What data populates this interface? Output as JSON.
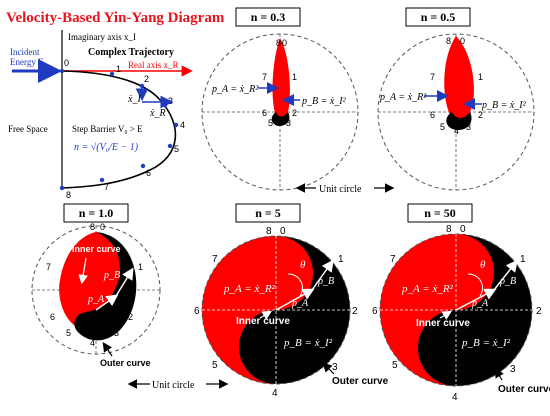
{
  "title": "Velocity-Based Yin-Yang Diagram",
  "trajectory_panel": {
    "imag_axis_label": "Imaginary axis x_I",
    "real_axis_label": "Real axis x_R",
    "complex_trajectory_label": "Complex Trajectory",
    "incident_label_1": "Incident",
    "incident_label_2": "Energy E",
    "free_space_label": "Free Space",
    "step_barrier_label": "Step Barrier V₀ > E",
    "n_formula": "n = √(V₀/E − 1)",
    "xi_dot_label": "ẋ_I",
    "xr_dot_label": "ẋ_R",
    "point_labels": [
      "0",
      "1",
      "2",
      "3",
      "4",
      "5",
      "6",
      "7",
      "8"
    ]
  },
  "panels": [
    {
      "id": "n03",
      "label": "n = 0.3",
      "pa": "p_A = ẋ_R²",
      "pb": "p_B = ẋ_I²",
      "numbers": [
        "8",
        "0",
        "7",
        "1",
        "6",
        "2",
        "5",
        "4",
        "3"
      ]
    },
    {
      "id": "n05",
      "label": "n = 0.5",
      "pa": "p_A = ẋ_R²",
      "pb": "p_B = ẋ_I²",
      "numbers": [
        "8",
        "0",
        "7",
        "1",
        "6",
        "2",
        "5",
        "4",
        "3"
      ]
    },
    {
      "id": "n10",
      "label": "n = 1.0",
      "pa": "p_A",
      "pb": "p_B",
      "inner": "Inner curve",
      "outer": "Outer curve",
      "numbers": [
        "8",
        "0",
        "7",
        "1",
        "6",
        "2",
        "5",
        "4",
        "3"
      ]
    },
    {
      "id": "n5",
      "label": "n = 5",
      "pa": "p_A = ẋ_R²",
      "pb": "p_B = ẋ_I²",
      "pa_short": "p_A",
      "pb_short": "p_B",
      "theta": "θ",
      "inner": "Inner curve",
      "outer": "Outer curve",
      "numbers": [
        "8",
        "0",
        "7",
        "1",
        "6",
        "2",
        "5",
        "3",
        "4"
      ]
    },
    {
      "id": "n50",
      "label": "n = 50",
      "pa": "p_A = ẋ_R²",
      "pb": "p_B = ẋ_I²",
      "pa_short": "p_A",
      "pb_short": "p_B",
      "theta": "θ",
      "inner": "Inner curve",
      "outer": "Outer curve",
      "numbers": [
        "8",
        "0",
        "7",
        "1",
        "6",
        "2",
        "5",
        "3",
        "4"
      ]
    }
  ],
  "unit_circle_label": "Unit circle",
  "colors": {
    "red": "#ff0000",
    "title": "#e8141e",
    "blue": "#1f3bbf",
    "black": "#000000"
  }
}
